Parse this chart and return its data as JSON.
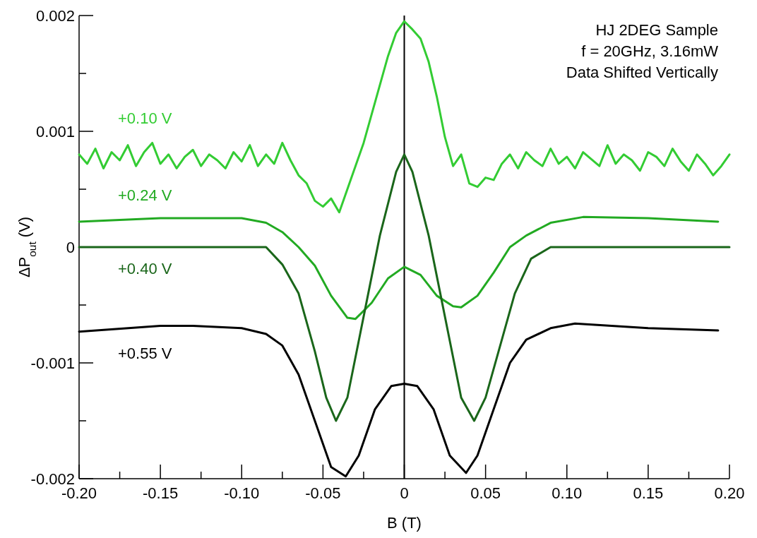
{
  "chart_data": {
    "type": "line",
    "xlabel": "B (T)",
    "ylabel": "ΔP$_{out}$ (V)",
    "xlim": [
      -0.2,
      0.2
    ],
    "ylim": [
      -0.002,
      0.002
    ],
    "xticks": [
      {
        "value": -0.2,
        "label": "-0.20"
      },
      {
        "value": -0.175,
        "label": null
      },
      {
        "value": -0.15,
        "label": "-0.15"
      },
      {
        "value": -0.125,
        "label": null
      },
      {
        "value": -0.1,
        "label": "-0.10"
      },
      {
        "value": -0.075,
        "label": null
      },
      {
        "value": -0.05,
        "label": "-0.05"
      },
      {
        "value": -0.025,
        "label": null
      },
      0,
      {
        "value": 0.025,
        "label": null
      },
      0.05,
      {
        "value": 0.075,
        "label": null
      },
      {
        "value": 0.1,
        "label": "0.10"
      },
      {
        "value": 0.125,
        "label": null
      },
      0.15,
      {
        "value": 0.175,
        "label": null
      },
      {
        "value": 0.2,
        "label": "0.20"
      }
    ],
    "yticks": [
      -0.002,
      {
        "value": -0.0015,
        "label": null
      },
      -0.001,
      {
        "value": -0.0005,
        "label": null
      },
      0,
      {
        "value": 0.0005,
        "label": null
      },
      0.001,
      {
        "value": 0.0015,
        "label": null
      },
      0.002
    ],
    "line_style": "solid",
    "legend": "left",
    "ref_lines": [
      {
        "axis": "x",
        "value": 0,
        "color": "#000000"
      }
    ],
    "annotations": [
      "HJ 2DEG Sample",
      "f = 20GHz, 3.16mW",
      "Data Shifted Vertically"
    ],
    "series": [
      {
        "name": "+0.10 V",
        "color": "#33cc33",
        "x": [
          -0.2,
          -0.195,
          -0.19,
          -0.185,
          -0.18,
          -0.175,
          -0.17,
          -0.165,
          -0.16,
          -0.155,
          -0.15,
          -0.145,
          -0.14,
          -0.135,
          -0.13,
          -0.125,
          -0.12,
          -0.115,
          -0.11,
          -0.105,
          -0.1,
          -0.095,
          -0.09,
          -0.085,
          -0.08,
          -0.075,
          -0.07,
          -0.065,
          -0.06,
          -0.055,
          -0.05,
          -0.045,
          -0.04,
          -0.035,
          -0.03,
          -0.025,
          -0.02,
          -0.015,
          -0.01,
          -0.005,
          0,
          0.005,
          0.01,
          0.015,
          0.02,
          0.025,
          0.03,
          0.035,
          0.04,
          0.045,
          0.05,
          0.055,
          0.06,
          0.065,
          0.07,
          0.075,
          0.08,
          0.085,
          0.09,
          0.095,
          0.1,
          0.105,
          0.11,
          0.115,
          0.12,
          0.125,
          0.13,
          0.135,
          0.14,
          0.145,
          0.15,
          0.155,
          0.16,
          0.165,
          0.17,
          0.175,
          0.18,
          0.185,
          0.19,
          0.195,
          0.2
        ],
        "values": [
          0.0008,
          0.00072,
          0.00085,
          0.00068,
          0.00082,
          0.00075,
          0.00088,
          0.0007,
          0.00082,
          0.0009,
          0.00072,
          0.0008,
          0.00068,
          0.00078,
          0.00084,
          0.0007,
          0.0008,
          0.00075,
          0.00068,
          0.00082,
          0.00074,
          0.00088,
          0.0007,
          0.0008,
          0.00072,
          0.0009,
          0.00075,
          0.00062,
          0.00055,
          0.0004,
          0.00035,
          0.00042,
          0.0003,
          0.0005,
          0.0007,
          0.0009,
          0.00115,
          0.0014,
          0.00165,
          0.00185,
          0.00195,
          0.00188,
          0.0018,
          0.0016,
          0.0013,
          0.00095,
          0.0007,
          0.0008,
          0.00055,
          0.00052,
          0.0006,
          0.00058,
          0.00072,
          0.0008,
          0.00068,
          0.00082,
          0.00075,
          0.0007,
          0.00085,
          0.00072,
          0.00078,
          0.00068,
          0.00082,
          0.00076,
          0.0007,
          0.00088,
          0.00072,
          0.0008,
          0.00075,
          0.00066,
          0.00082,
          0.00078,
          0.0007,
          0.00085,
          0.00074,
          0.00066,
          0.0008,
          0.00072,
          0.00062,
          0.0007,
          0.0008
        ]
      },
      {
        "name": "+0.24 V",
        "color": "#22aa22",
        "x": [
          -0.2,
          -0.15,
          -0.1,
          -0.085,
          -0.075,
          -0.065,
          -0.055,
          -0.045,
          -0.035,
          -0.03,
          -0.02,
          -0.01,
          0,
          0.01,
          0.02,
          0.03,
          0.035,
          0.045,
          0.055,
          0.065,
          0.075,
          0.09,
          0.11,
          0.15,
          0.193
        ],
        "values": [
          0.00022,
          0.00025,
          0.00025,
          0.00021,
          0.00013,
          0,
          -0.00016,
          -0.00042,
          -0.00061,
          -0.00062,
          -0.00048,
          -0.00027,
          -0.00017,
          -0.00024,
          -0.00042,
          -0.00051,
          -0.00052,
          -0.00042,
          -0.00022,
          0,
          0.0001,
          0.00021,
          0.00026,
          0.00025,
          0.00022
        ]
      },
      {
        "name": "+0.40 V",
        "color": "#1a661a",
        "x": [
          -0.2,
          -0.15,
          -0.13,
          -0.1,
          -0.085,
          -0.075,
          -0.065,
          -0.055,
          -0.048,
          -0.042,
          -0.035,
          -0.025,
          -0.015,
          -0.005,
          0,
          0.005,
          0.015,
          0.025,
          0.035,
          0.043,
          0.05,
          0.058,
          0.068,
          0.078,
          0.09,
          0.11,
          0.15,
          0.2
        ],
        "values": [
          0,
          0,
          0,
          0,
          0,
          -0.00015,
          -0.0004,
          -0.0009,
          -0.0013,
          -0.0015,
          -0.0013,
          -0.0006,
          0.0001,
          0.00065,
          0.0008,
          0.00065,
          0.0001,
          -0.0006,
          -0.0013,
          -0.0015,
          -0.0013,
          -0.0009,
          -0.0004,
          -0.0001,
          0,
          0,
          0,
          0
        ]
      },
      {
        "name": "+0.55 V",
        "color": "#000000",
        "x": [
          -0.2,
          -0.15,
          -0.13,
          -0.1,
          -0.085,
          -0.075,
          -0.065,
          -0.055,
          -0.045,
          -0.036,
          -0.028,
          -0.018,
          -0.008,
          0,
          0.008,
          0.018,
          0.028,
          0.038,
          0.045,
          0.055,
          0.065,
          0.075,
          0.09,
          0.105,
          0.15,
          0.193
        ],
        "values": [
          -0.00073,
          -0.00068,
          -0.00068,
          -0.0007,
          -0.00075,
          -0.00085,
          -0.0011,
          -0.0015,
          -0.0019,
          -0.00198,
          -0.0018,
          -0.0014,
          -0.0012,
          -0.00118,
          -0.0012,
          -0.0014,
          -0.0018,
          -0.00195,
          -0.0018,
          -0.0014,
          -0.001,
          -0.0008,
          -0.0007,
          -0.00066,
          -0.0007,
          -0.00072
        ]
      }
    ]
  }
}
